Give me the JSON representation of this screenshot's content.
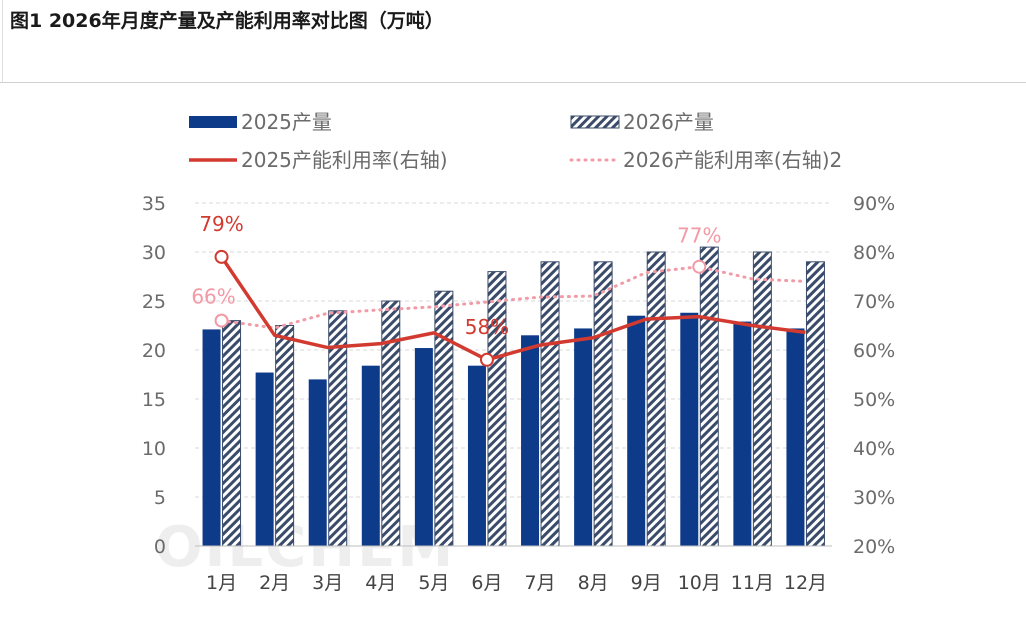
{
  "title": "图1 2026年月度产量及产能利用率对比图（万吨）",
  "watermark": "OILCHEM",
  "colors": {
    "bar2025": "#0e3a8a",
    "hatch2026": "#3b4c6b",
    "line2025": "#d23a30",
    "line2026": "#f29aa6",
    "axis_text": "#6b6b6b",
    "grid": "#d9d9d9"
  },
  "chart_data": {
    "type": "bar+line",
    "title": "2026年月度产量及产能利用率对比图（万吨）",
    "categories": [
      "1月",
      "2月",
      "3月",
      "4月",
      "5月",
      "6月",
      "7月",
      "8月",
      "9月",
      "10月",
      "11月",
      "12月"
    ],
    "y_left": {
      "min": 0,
      "max": 35,
      "ticks": [
        "0",
        "5",
        "10",
        "15",
        "20",
        "25",
        "30",
        "35"
      ]
    },
    "y_right": {
      "min": 20,
      "max": 90,
      "ticks": [
        "20%",
        "30%",
        "40%",
        "50%",
        "60%",
        "70%",
        "80%",
        "90%"
      ]
    },
    "legend": [
      {
        "key": "bar2025",
        "label": "2025产量"
      },
      {
        "key": "bar2026",
        "label": "2026产量"
      },
      {
        "key": "line2025",
        "label": "2025产能利用率(右轴)"
      },
      {
        "key": "line2026",
        "label": "2026产能利用率(右轴)2"
      }
    ],
    "series": [
      {
        "name": "2025产量",
        "type": "bar",
        "axis": "left",
        "values": [
          22.1,
          17.7,
          17.0,
          18.4,
          20.2,
          18.4,
          21.5,
          22.2,
          23.5,
          23.8,
          22.9,
          22.2
        ]
      },
      {
        "name": "2026产量",
        "type": "bar",
        "axis": "left",
        "pattern": "hatch",
        "values": [
          23.0,
          22.5,
          24.0,
          25.0,
          26.0,
          28.0,
          29.0,
          29.0,
          30.0,
          30.5,
          30.0,
          29.0
        ]
      },
      {
        "name": "2025产能利用率(右轴)",
        "type": "line",
        "axis": "right",
        "values": [
          79,
          63,
          60.5,
          61.3,
          63.5,
          58,
          61,
          62.5,
          66.3,
          66.8,
          65,
          63.6
        ]
      },
      {
        "name": "2026产能利用率(右轴)2",
        "type": "line",
        "axis": "right",
        "style": "dotted",
        "values": [
          66,
          64.5,
          67.5,
          68.2,
          68.8,
          69.8,
          70.8,
          71,
          75.8,
          77,
          74.5,
          74
        ]
      }
    ],
    "annotations": [
      {
        "series": 2,
        "index": 0,
        "text": "79%"
      },
      {
        "series": 2,
        "index": 5,
        "text": "58%"
      },
      {
        "series": 3,
        "index": 0,
        "text": "66%"
      },
      {
        "series": 3,
        "index": 9,
        "text": "77%"
      }
    ]
  }
}
